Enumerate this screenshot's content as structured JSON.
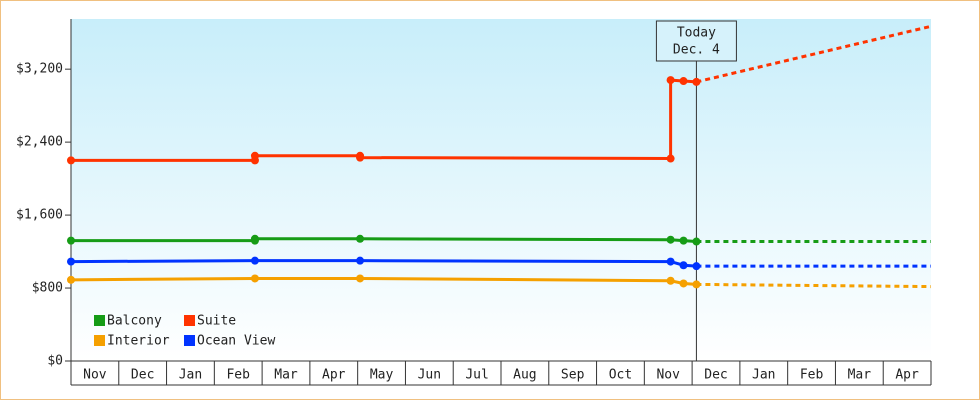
{
  "chart_data": {
    "type": "line",
    "categories": [
      "Nov",
      "Dec",
      "Jan",
      "Feb",
      "Mar",
      "Apr",
      "May",
      "Jun",
      "Jul",
      "Aug",
      "Sep",
      "Oct",
      "Nov",
      "Dec",
      "Jan",
      "Feb",
      "Mar",
      "Apr"
    ],
    "xlim": [
      0,
      18
    ],
    "ylim": [
      0,
      3750
    ],
    "yticks": [
      {
        "value": 0,
        "label": "$0"
      },
      {
        "value": 800,
        "label": "$800"
      },
      {
        "value": 1600,
        "label": "$1,600"
      },
      {
        "value": 2400,
        "label": "$2,400"
      },
      {
        "value": 3200,
        "label": "$3,200"
      }
    ],
    "today": {
      "x": 13.09,
      "label": [
        "Today",
        "Dec. 4"
      ]
    },
    "series": [
      {
        "name": "Balcony",
        "color": "#169c16",
        "x": [
          0,
          3.85,
          3.85,
          6.05,
          12.55,
          12.82,
          13.09
        ],
        "values": [
          1320,
          1320,
          1340,
          1340,
          1330,
          1320,
          1310
        ],
        "forecast": {
          "x": [
            13.09,
            18
          ],
          "values": [
            1310,
            1310
          ]
        }
      },
      {
        "name": "Suite",
        "color": "#ff3300",
        "x": [
          0,
          3.85,
          3.85,
          6.05,
          6.05,
          12.55,
          12.55,
          12.82,
          13.09
        ],
        "values": [
          2200,
          2200,
          2250,
          2250,
          2230,
          2220,
          3080,
          3070,
          3060
        ],
        "forecast": {
          "x": [
            13.09,
            18
          ],
          "values": [
            3060,
            3670
          ]
        }
      },
      {
        "name": "Interior",
        "color": "#f5a000",
        "x": [
          0,
          3.85,
          6.05,
          12.55,
          12.82,
          13.09
        ],
        "values": [
          890,
          905,
          905,
          880,
          850,
          840
        ],
        "forecast": {
          "x": [
            13.09,
            18
          ],
          "values": [
            840,
            816
          ]
        }
      },
      {
        "name": "Ocean View",
        "color": "#0033ff",
        "x": [
          0,
          3.85,
          6.05,
          12.55,
          12.82,
          13.09
        ],
        "values": [
          1090,
          1100,
          1100,
          1090,
          1050,
          1040
        ],
        "forecast": {
          "x": [
            13.09,
            18
          ],
          "values": [
            1040,
            1040
          ]
        }
      }
    ]
  }
}
